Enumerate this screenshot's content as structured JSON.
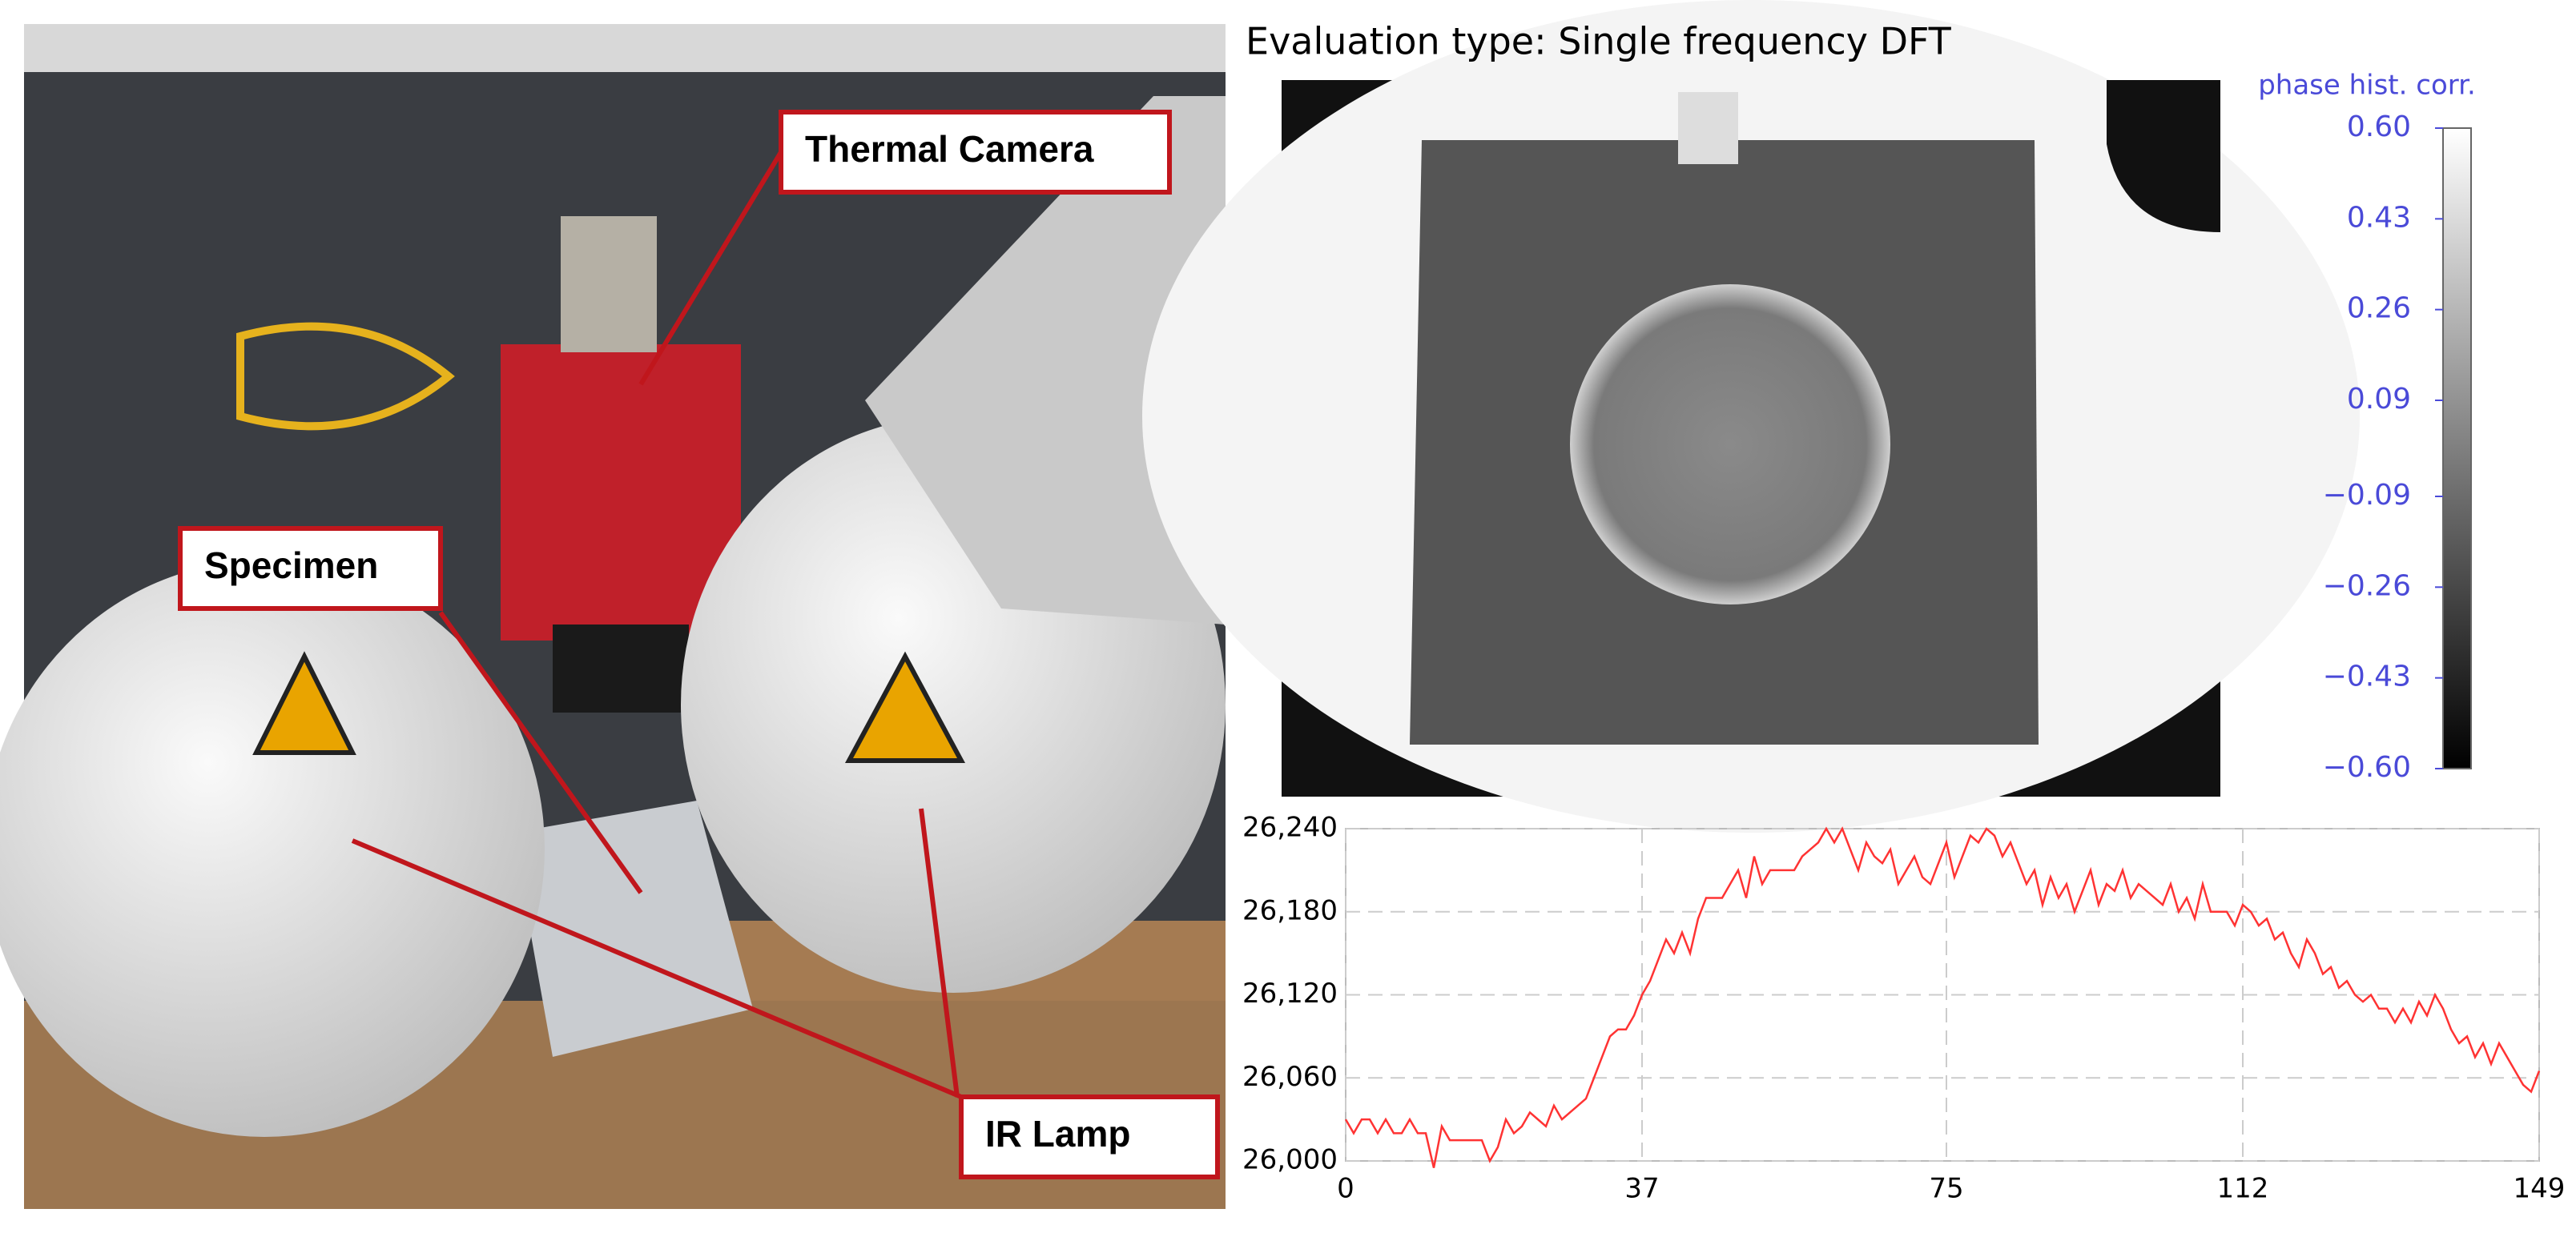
{
  "photo": {
    "labels": [
      "Thermal Camera",
      "Specimen",
      "IR Lamp"
    ]
  },
  "chart_data": [
    {
      "type": "colorbar",
      "title": "Evaluation type: Single frequency DFT",
      "label": "phase hist. corr.",
      "clim": [
        -0.6,
        0.6
      ],
      "label_color": "#4a4ad8",
      "cticks": [
        {
          "value": 0.6,
          "label": "0.60"
        },
        0.43,
        0.26,
        0.09,
        {
          "value": -0.09,
          "label": "−0.09"
        },
        {
          "value": -0.26,
          "label": "−0.26"
        },
        {
          "value": -0.43,
          "label": "−0.43"
        },
        {
          "value": -0.6,
          "label": "−0.60"
        }
      ]
    },
    {
      "type": "line",
      "color": "#ff3333",
      "grid": true,
      "x": [
        0,
        1,
        2,
        3,
        4,
        5,
        6,
        7,
        8,
        9,
        10,
        11,
        12,
        13,
        14,
        15,
        16,
        17,
        18,
        19,
        20,
        21,
        22,
        23,
        24,
        25,
        26,
        27,
        28,
        29,
        30,
        31,
        32,
        33,
        34,
        35,
        36,
        37,
        38,
        39,
        40,
        41,
        42,
        43,
        44,
        45,
        46,
        47,
        48,
        49,
        50,
        51,
        52,
        53,
        54,
        55,
        56,
        57,
        58,
        59,
        60,
        61,
        62,
        63,
        64,
        65,
        66,
        67,
        68,
        69,
        70,
        71,
        72,
        73,
        74,
        75,
        76,
        77,
        78,
        79,
        80,
        81,
        82,
        83,
        84,
        85,
        86,
        87,
        88,
        89,
        90,
        91,
        92,
        93,
        94,
        95,
        96,
        97,
        98,
        99,
        100,
        101,
        102,
        103,
        104,
        105,
        106,
        107,
        108,
        109,
        110,
        111,
        112,
        113,
        114,
        115,
        116,
        117,
        118,
        119,
        120,
        121,
        122,
        123,
        124,
        125,
        126,
        127,
        128,
        129,
        130,
        131,
        132,
        133,
        134,
        135,
        136,
        137,
        138,
        139,
        140,
        141,
        142,
        143,
        144,
        145,
        146,
        147,
        148,
        149
      ],
      "values": [
        26030,
        26020,
        26030,
        26030,
        26020,
        26030,
        26020,
        26020,
        26030,
        26020,
        26020,
        25995,
        26025,
        26015,
        26015,
        26015,
        26015,
        26015,
        26000,
        26010,
        26030,
        26020,
        26025,
        26035,
        26030,
        26025,
        26040,
        26030,
        26035,
        26040,
        26045,
        26060,
        26075,
        26090,
        26095,
        26095,
        26105,
        26120,
        26130,
        26145,
        26160,
        26150,
        26165,
        26150,
        26175,
        26190,
        26190,
        26190,
        26200,
        26210,
        26190,
        26220,
        26200,
        26210,
        26210,
        26210,
        26210,
        26220,
        26225,
        26230,
        26240,
        26230,
        26240,
        26225,
        26210,
        26230,
        26220,
        26215,
        26225,
        26200,
        26210,
        26220,
        26205,
        26200,
        26215,
        26230,
        26205,
        26220,
        26235,
        26230,
        26240,
        26235,
        26220,
        26230,
        26215,
        26200,
        26210,
        26185,
        26205,
        26190,
        26200,
        26180,
        26195,
        26210,
        26185,
        26200,
        26195,
        26210,
        26190,
        26200,
        26195,
        26190,
        26185,
        26200,
        26180,
        26190,
        26175,
        26200,
        26180,
        26180,
        26180,
        26170,
        26185,
        26180,
        26170,
        26175,
        26160,
        26165,
        26150,
        26140,
        26160,
        26150,
        26135,
        26140,
        26125,
        26130,
        26120,
        26115,
        26120,
        26110,
        26110,
        26100,
        26110,
        26100,
        26115,
        26105,
        26120,
        26110,
        26095,
        26085,
        26090,
        26075,
        26085,
        26070,
        26085,
        26075,
        26065,
        26055,
        26050,
        26065
      ],
      "xlim": [
        0,
        149
      ],
      "xticks": [
        0,
        37,
        75,
        112,
        149
      ],
      "ylim": [
        26000,
        26240
      ],
      "yticks": [
        {
          "value": 26000,
          "label": "26,000"
        },
        {
          "value": 26060,
          "label": "26,060"
        },
        {
          "value": 26120,
          "label": "26,120"
        },
        {
          "value": 26180,
          "label": "26,180"
        },
        {
          "value": 26240,
          "label": "26,240"
        }
      ]
    }
  ]
}
